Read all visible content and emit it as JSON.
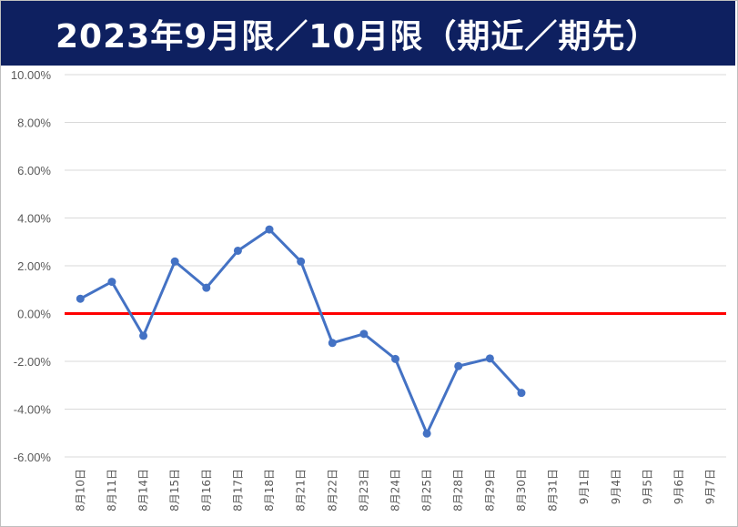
{
  "title": "2023年9月限／10月限（期近／期先）",
  "colors": {
    "title_bg": "#0e2060",
    "title_text": "#ffffff",
    "series_line": "#4472c4",
    "zero_line": "#ff0000",
    "grid": "#d9d9d9",
    "tick_text": "#595959"
  },
  "chart_data": {
    "type": "line",
    "title": "2023年9月限／10月限（期近／期先）",
    "xlabel": "",
    "ylabel": "",
    "ylim": [
      -0.06,
      0.1
    ],
    "yticks": [
      0.1,
      0.08,
      0.06,
      0.04,
      0.02,
      0.0,
      -0.02,
      -0.04,
      -0.06
    ],
    "ytick_labels": [
      "10.00%",
      "8.00%",
      "6.00%",
      "4.00%",
      "2.00%",
      "0.00%",
      "-2.00%",
      "-4.00%",
      "-6.00%"
    ],
    "grid": true,
    "legend": "none",
    "categories": [
      "8月10日",
      "8月11日",
      "8月14日",
      "8月15日",
      "8月16日",
      "8月17日",
      "8月18日",
      "8月21日",
      "8月22日",
      "8月23日",
      "8月24日",
      "8月25日",
      "8月28日",
      "8月29日",
      "8月30日",
      "8月31日",
      "9月1日",
      "9月4日",
      "9月5日",
      "9月6日",
      "9月7日"
    ],
    "series": [
      {
        "values": [
          0.0062,
          0.0133,
          -0.0093,
          0.0218,
          0.0108,
          0.0263,
          0.0352,
          0.0218,
          -0.0123,
          -0.0085,
          -0.019,
          -0.0502,
          -0.022,
          -0.0188,
          -0.0332,
          null,
          null,
          null,
          null,
          null,
          null
        ]
      }
    ],
    "reference_line": {
      "y": 0.0
    }
  }
}
